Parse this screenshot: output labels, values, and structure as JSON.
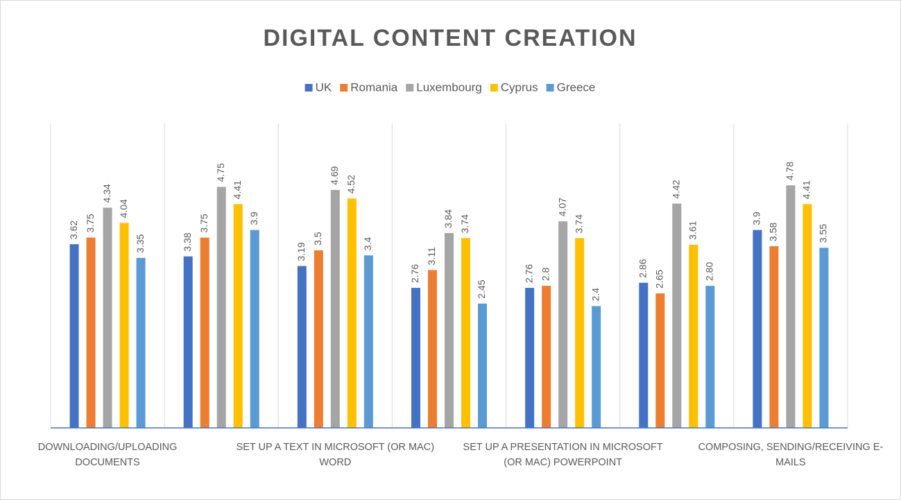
{
  "chart_data": {
    "type": "bar",
    "title": "DIGITAL CONTENT CREATION",
    "categories": [
      "DOWNLOADING/UPLOADING DOCUMENTS",
      null,
      "SET UP A TEXT IN MICROSOFT (OR MAC) WORD",
      null,
      "SET UP A PRESENTATION IN MICROSOFT (OR MAC) POWERPOINT",
      null,
      "COMPOSING, SENDING/RECEIVING E-MAILS"
    ],
    "series": [
      {
        "name": "UK",
        "color": "#4472c4",
        "values": [
          3.62,
          3.38,
          3.19,
          2.76,
          2.76,
          2.86,
          3.9
        ]
      },
      {
        "name": "Romania",
        "color": "#ed7d31",
        "values": [
          3.75,
          3.75,
          3.5,
          3.11,
          2.8,
          2.65,
          3.58
        ]
      },
      {
        "name": "Luxembourg",
        "color": "#a5a5a5",
        "values": [
          4.34,
          4.75,
          4.69,
          3.84,
          4.07,
          4.42,
          4.78
        ]
      },
      {
        "name": "Cyprus",
        "color": "#ffc000",
        "values": [
          4.04,
          4.41,
          4.52,
          3.74,
          3.74,
          3.61,
          4.41
        ]
      },
      {
        "name": "Greece",
        "color": "#5b9bd5",
        "values": [
          3.35,
          3.9,
          3.4,
          2.45,
          2.4,
          2.8,
          3.55
        ],
        "value_labels": [
          "3.35",
          "3.9",
          "3.4",
          "2.45",
          "2.4",
          "2.80",
          "3.55"
        ]
      }
    ],
    "ylim": [
      0,
      6
    ],
    "legend": "top"
  }
}
